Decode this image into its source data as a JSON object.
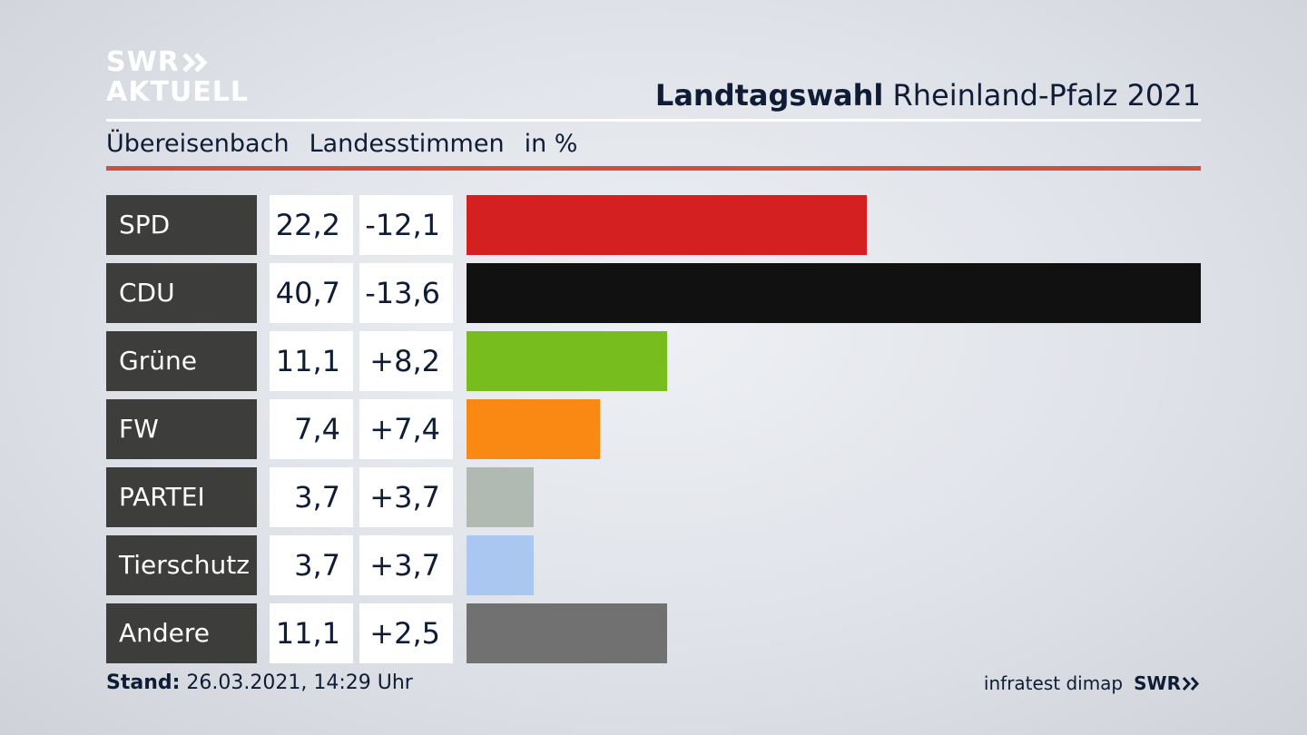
{
  "logo": {
    "line1": "SWR",
    "line2": "AKTUELL"
  },
  "title": {
    "bold": "Landtagswahl",
    "rest": " Rheinland-Pfalz 2021"
  },
  "subtitle": {
    "place": "Übereisenbach",
    "vote_type": "Landesstimmen",
    "unit": "in %"
  },
  "footer": {
    "stand_label": "Stand:",
    "stand_value": " 26.03.2021, 14:29 Uhr",
    "source": "infratest dimap",
    "source_logo": "SWR"
  },
  "chart_data": {
    "type": "bar",
    "orientation": "horizontal",
    "categories": [
      "SPD",
      "CDU",
      "Grüne",
      "FW",
      "PARTEI",
      "Tierschutz",
      "Andere"
    ],
    "values": [
      22.2,
      40.7,
      11.1,
      7.4,
      3.7,
      3.7,
      11.1
    ],
    "value_labels": [
      "22,2",
      "40,7",
      "11,1",
      "7,4",
      "3,7",
      "3,7",
      "11,1"
    ],
    "diff_labels": [
      "-12,1",
      "-13,6",
      "+8,2",
      "+7,4",
      "+3,7",
      "+3,7",
      "+2,5"
    ],
    "colors": [
      "#d42020",
      "#111111",
      "#78bd1e",
      "#fa8914",
      "#b1b9b3",
      "#a9c7f0",
      "#717171"
    ],
    "xlim": [
      0,
      40.7
    ]
  }
}
